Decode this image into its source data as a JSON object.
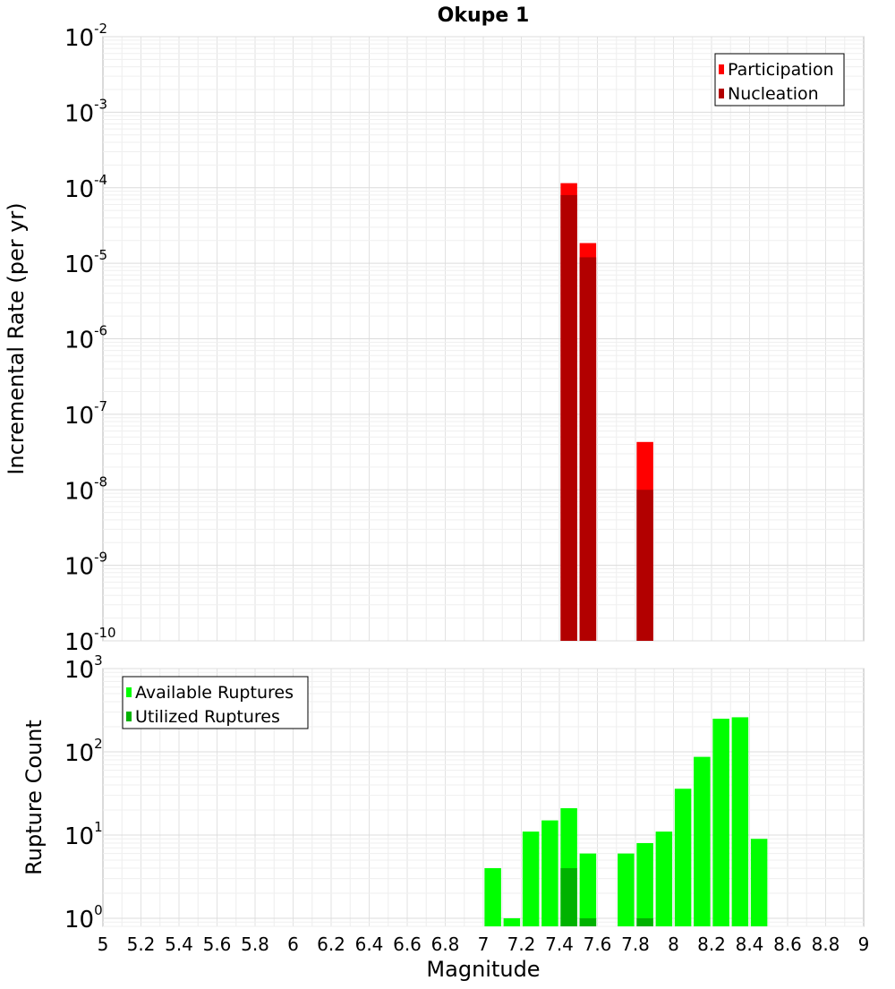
{
  "chart_data": [
    {
      "type": "bar",
      "title": "Okupe 1",
      "xlabel": "",
      "ylabel": "Incremental Rate (per yr)",
      "y_scale": "log",
      "ylim": [
        1e-10,
        0.01
      ],
      "xlim": [
        5,
        9
      ],
      "y_tick_labels": [
        {
          "base": "10",
          "exp": "-2"
        },
        {
          "base": "10",
          "exp": "-3"
        },
        {
          "base": "10",
          "exp": "-4"
        },
        {
          "base": "10",
          "exp": "-5"
        },
        {
          "base": "10",
          "exp": "-6"
        },
        {
          "base": "10",
          "exp": "-7"
        },
        {
          "base": "10",
          "exp": "-8"
        },
        {
          "base": "10",
          "exp": "-9"
        },
        {
          "base": "10",
          "exp": "-10"
        }
      ],
      "grid": true,
      "legend_position": "top-right",
      "series": [
        {
          "name": "Participation",
          "color": "#ff0000",
          "points": [
            {
              "x": 7.45,
              "y": 0.000115
            },
            {
              "x": 7.55,
              "y": 1.85e-05
            },
            {
              "x": 7.85,
              "y": 4.3e-08
            }
          ]
        },
        {
          "name": "Nucleation",
          "color": "#b20000",
          "points": [
            {
              "x": 7.45,
              "y": 8e-05
            },
            {
              "x": 7.55,
              "y": 1.2e-05
            },
            {
              "x": 7.85,
              "y": 1e-08
            }
          ]
        }
      ]
    },
    {
      "type": "bar",
      "title": "",
      "xlabel": "Magnitude",
      "ylabel": "Rupture Count",
      "y_scale": "log",
      "ylim": [
        0.8,
        1000
      ],
      "xlim": [
        5,
        9
      ],
      "x_tick_labels": [
        "5",
        "5.2",
        "5.4",
        "5.6",
        "5.8",
        "6",
        "6.2",
        "6.4",
        "6.6",
        "6.8",
        "7",
        "7.2",
        "7.4",
        "7.6",
        "7.8",
        "8",
        "8.2",
        "8.4",
        "8.6",
        "8.8",
        "9"
      ],
      "y_tick_labels": [
        {
          "base": "10",
          "exp": "3"
        },
        {
          "base": "10",
          "exp": "2"
        },
        {
          "base": "10",
          "exp": "1"
        },
        {
          "base": "10",
          "exp": "0"
        }
      ],
      "grid": true,
      "legend_position": "top-left",
      "series": [
        {
          "name": "Available Ruptures",
          "color": "#00ff00",
          "points": [
            {
              "x": 7.05,
              "y": 4
            },
            {
              "x": 7.15,
              "y": 1
            },
            {
              "x": 7.25,
              "y": 11
            },
            {
              "x": 7.35,
              "y": 15
            },
            {
              "x": 7.45,
              "y": 21
            },
            {
              "x": 7.55,
              "y": 6
            },
            {
              "x": 7.75,
              "y": 6
            },
            {
              "x": 7.85,
              "y": 8
            },
            {
              "x": 7.95,
              "y": 11
            },
            {
              "x": 8.05,
              "y": 36
            },
            {
              "x": 8.15,
              "y": 87
            },
            {
              "x": 8.25,
              "y": 250
            },
            {
              "x": 8.35,
              "y": 260
            },
            {
              "x": 8.45,
              "y": 9
            }
          ]
        },
        {
          "name": "Utilized Ruptures",
          "color": "#00b200",
          "points": [
            {
              "x": 7.45,
              "y": 4
            },
            {
              "x": 7.55,
              "y": 1
            },
            {
              "x": 7.85,
              "y": 1
            }
          ]
        }
      ]
    }
  ]
}
